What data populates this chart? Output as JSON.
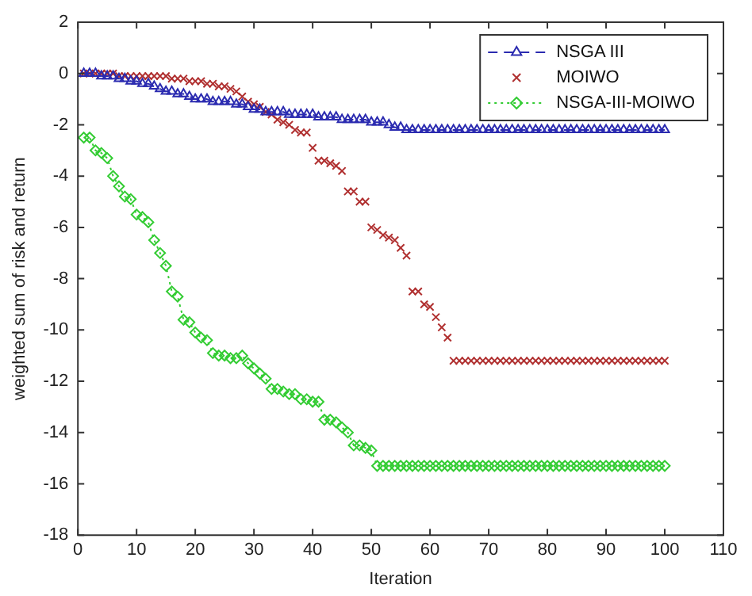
{
  "chart_data": {
    "type": "line",
    "xlabel": "Iteration",
    "ylabel": "weighted sum of risk and return",
    "x": [
      1,
      2,
      3,
      4,
      5,
      6,
      7,
      8,
      9,
      10,
      11,
      12,
      13,
      14,
      15,
      16,
      17,
      18,
      19,
      20,
      21,
      22,
      23,
      24,
      25,
      26,
      27,
      28,
      29,
      30,
      31,
      32,
      33,
      34,
      35,
      36,
      37,
      38,
      39,
      40,
      41,
      42,
      43,
      44,
      45,
      46,
      47,
      48,
      49,
      50,
      51,
      52,
      53,
      54,
      55,
      56,
      57,
      58,
      59,
      60,
      61,
      62,
      63,
      64,
      65,
      66,
      67,
      68,
      69,
      70,
      71,
      72,
      73,
      74,
      75,
      76,
      77,
      78,
      79,
      80,
      81,
      82,
      83,
      84,
      85,
      86,
      87,
      88,
      89,
      90,
      91,
      92,
      93,
      94,
      95,
      96,
      97,
      98,
      99,
      100
    ],
    "series": [
      {
        "name": "NSGA III",
        "color": "#2b2bb0",
        "marker": "triangle",
        "line_style": "dashed",
        "values": [
          0,
          0,
          0,
          -0.1,
          -0.1,
          -0.1,
          -0.2,
          -0.2,
          -0.3,
          -0.3,
          -0.4,
          -0.4,
          -0.5,
          -0.6,
          -0.7,
          -0.7,
          -0.8,
          -0.8,
          -0.9,
          -1.0,
          -1.0,
          -1.0,
          -1.1,
          -1.1,
          -1.1,
          -1.1,
          -1.2,
          -1.2,
          -1.3,
          -1.4,
          -1.4,
          -1.5,
          -1.5,
          -1.5,
          -1.5,
          -1.6,
          -1.6,
          -1.6,
          -1.6,
          -1.6,
          -1.7,
          -1.7,
          -1.7,
          -1.7,
          -1.8,
          -1.8,
          -1.8,
          -1.8,
          -1.8,
          -1.9,
          -1.9,
          -1.9,
          -2.0,
          -2.1,
          -2.1,
          -2.2,
          -2.2,
          -2.2,
          -2.2,
          -2.2,
          -2.2,
          -2.2,
          -2.2,
          -2.2,
          -2.2,
          -2.2,
          -2.2,
          -2.2,
          -2.2,
          -2.2,
          -2.2,
          -2.2,
          -2.2,
          -2.2,
          -2.2,
          -2.2,
          -2.2,
          -2.2,
          -2.2,
          -2.2,
          -2.2,
          -2.2,
          -2.2,
          -2.2,
          -2.2,
          -2.2,
          -2.2,
          -2.2,
          -2.2,
          -2.2,
          -2.2,
          -2.2,
          -2.2,
          -2.2,
          -2.2,
          -2.2,
          -2.2,
          -2.2,
          -2.2,
          -2.2
        ]
      },
      {
        "name": "MOIWO",
        "type": "scatter",
        "color": "#b03030",
        "marker": "cross",
        "values": [
          0,
          0,
          0,
          0,
          0,
          0,
          -0.1,
          -0.1,
          -0.1,
          -0.1,
          -0.1,
          -0.1,
          -0.1,
          -0.1,
          -0.1,
          -0.2,
          -0.2,
          -0.2,
          -0.3,
          -0.3,
          -0.3,
          -0.4,
          -0.4,
          -0.5,
          -0.5,
          -0.6,
          -0.7,
          -0.9,
          -1.1,
          -1.2,
          -1.3,
          -1.5,
          -1.6,
          -1.8,
          -1.9,
          -2.0,
          -2.2,
          -2.3,
          -2.3,
          -2.9,
          -3.4,
          -3.4,
          -3.5,
          -3.6,
          -3.8,
          -4.6,
          -4.6,
          -5.0,
          -5.0,
          -6.0,
          -6.1,
          -6.3,
          -6.4,
          -6.5,
          -6.8,
          -7.1,
          -8.5,
          -8.5,
          -9.0,
          -9.1,
          -9.5,
          -9.9,
          -10.3,
          -11.2,
          -11.2,
          -11.2,
          -11.2,
          -11.2,
          -11.2,
          -11.2,
          -11.2,
          -11.2,
          -11.2,
          -11.2,
          -11.2,
          -11.2,
          -11.2,
          -11.2,
          -11.2,
          -11.2,
          -11.2,
          -11.2,
          -11.2,
          -11.2,
          -11.2,
          -11.2,
          -11.2,
          -11.2,
          -11.2,
          -11.2,
          -11.2,
          -11.2,
          -11.2,
          -11.2,
          -11.2,
          -11.2,
          -11.2,
          -11.2,
          -11.2,
          -11.2
        ]
      },
      {
        "name": "NSGA-III-MOIWO",
        "color": "#33cc33",
        "marker": "diamond",
        "line_style": "dotted",
        "values": [
          -2.5,
          -2.5,
          -3.0,
          -3.1,
          -3.3,
          -4.0,
          -4.4,
          -4.8,
          -4.9,
          -5.5,
          -5.6,
          -5.8,
          -6.5,
          -7.0,
          -7.5,
          -8.5,
          -8.7,
          -9.6,
          -9.7,
          -10.1,
          -10.3,
          -10.4,
          -10.9,
          -11.0,
          -11.0,
          -11.1,
          -11.1,
          -11.0,
          -11.3,
          -11.5,
          -11.7,
          -11.9,
          -12.3,
          -12.3,
          -12.4,
          -12.5,
          -12.5,
          -12.7,
          -12.7,
          -12.8,
          -12.8,
          -13.5,
          -13.5,
          -13.6,
          -13.8,
          -14.0,
          -14.5,
          -14.5,
          -14.6,
          -14.7,
          -15.3,
          -15.3,
          -15.3,
          -15.3,
          -15.3,
          -15.3,
          -15.3,
          -15.3,
          -15.3,
          -15.3,
          -15.3,
          -15.3,
          -15.3,
          -15.3,
          -15.3,
          -15.3,
          -15.3,
          -15.3,
          -15.3,
          -15.3,
          -15.3,
          -15.3,
          -15.3,
          -15.3,
          -15.3,
          -15.3,
          -15.3,
          -15.3,
          -15.3,
          -15.3,
          -15.3,
          -15.3,
          -15.3,
          -15.3,
          -15.3,
          -15.3,
          -15.3,
          -15.3,
          -15.3,
          -15.3,
          -15.3,
          -15.3,
          -15.3,
          -15.3,
          -15.3,
          -15.3,
          -15.3,
          -15.3,
          -15.3,
          -15.3
        ]
      }
    ],
    "xlim": [
      0,
      110
    ],
    "xticks": [
      0,
      10,
      20,
      30,
      40,
      50,
      60,
      70,
      80,
      90,
      100,
      110
    ],
    "ylim": [
      -18,
      2
    ],
    "yticks": [
      -18,
      -16,
      -14,
      -12,
      -10,
      -8,
      -6,
      -4,
      -2,
      0,
      2
    ],
    "grid": false,
    "legend": "top right"
  }
}
